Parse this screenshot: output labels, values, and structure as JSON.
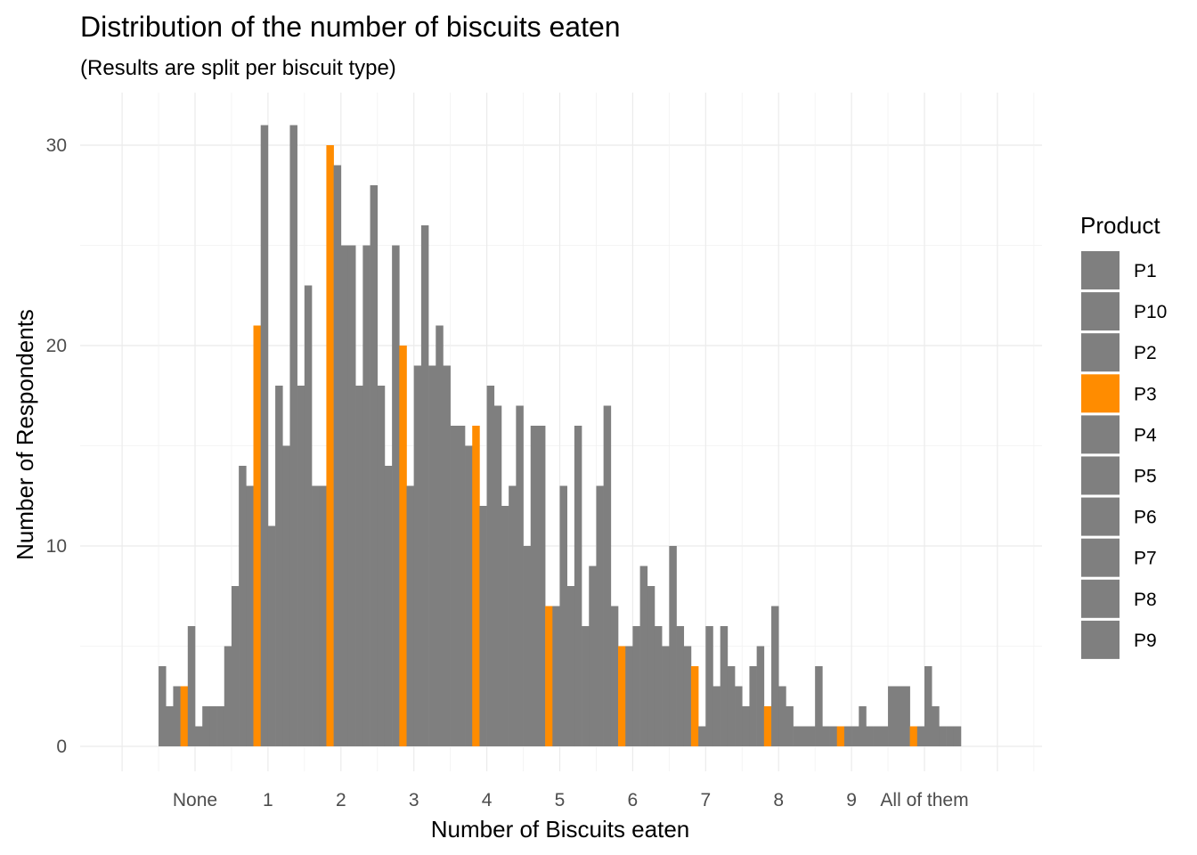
{
  "chart_data": {
    "type": "bar",
    "title": "Distribution of the number of biscuits eaten",
    "subtitle": "(Results are split per biscuit type)",
    "xlabel": "Number of Biscuits eaten",
    "ylabel": "Number of Respondents",
    "ylim": [
      0,
      32.5
    ],
    "y_ticks": [
      0,
      10,
      20,
      30
    ],
    "grid": true,
    "legend_position": "right",
    "legend_title": "Product",
    "categories": [
      "None",
      "1",
      "2",
      "3",
      "4",
      "5",
      "6",
      "7",
      "8",
      "9",
      "All of them"
    ],
    "series": [
      {
        "name": "P1",
        "color": "#7f7f7f",
        "values": [
          4,
          8,
          23,
          18,
          16,
          10,
          13,
          10,
          2,
          4,
          3
        ]
      },
      {
        "name": "P10",
        "color": "#7f7f7f",
        "values": [
          2,
          14,
          13,
          14,
          16,
          16,
          17,
          6,
          4,
          1,
          3
        ]
      },
      {
        "name": "P2",
        "color": "#7f7f7f",
        "values": [
          3,
          13,
          13,
          25,
          15,
          16,
          7,
          5,
          5,
          1,
          3
        ]
      },
      {
        "name": "P3",
        "color": "#ff8c00",
        "values": [
          3,
          21,
          30,
          20,
          16,
          7,
          5,
          4,
          2,
          1,
          1
        ]
      },
      {
        "name": "P4",
        "color": "#7f7f7f",
        "values": [
          6,
          31,
          29,
          13,
          12,
          7,
          5,
          1,
          7,
          1,
          1
        ]
      },
      {
        "name": "P5",
        "color": "#7f7f7f",
        "values": [
          1,
          11,
          25,
          19,
          18,
          13,
          6,
          6,
          3,
          1,
          4
        ]
      },
      {
        "name": "P6",
        "color": "#7f7f7f",
        "values": [
          2,
          18,
          25,
          26,
          17,
          8,
          9,
          3,
          2,
          2,
          2
        ]
      },
      {
        "name": "P7",
        "color": "#7f7f7f",
        "values": [
          2,
          15,
          18,
          19,
          12,
          16,
          8,
          6,
          1,
          1,
          1
        ]
      },
      {
        "name": "P8",
        "color": "#7f7f7f",
        "values": [
          2,
          31,
          25,
          21,
          13,
          6,
          6,
          4,
          1,
          1,
          1
        ]
      },
      {
        "name": "P9",
        "color": "#7f7f7f",
        "values": [
          5,
          18,
          28,
          19,
          17,
          9,
          5,
          3,
          1,
          1,
          1
        ]
      }
    ]
  }
}
